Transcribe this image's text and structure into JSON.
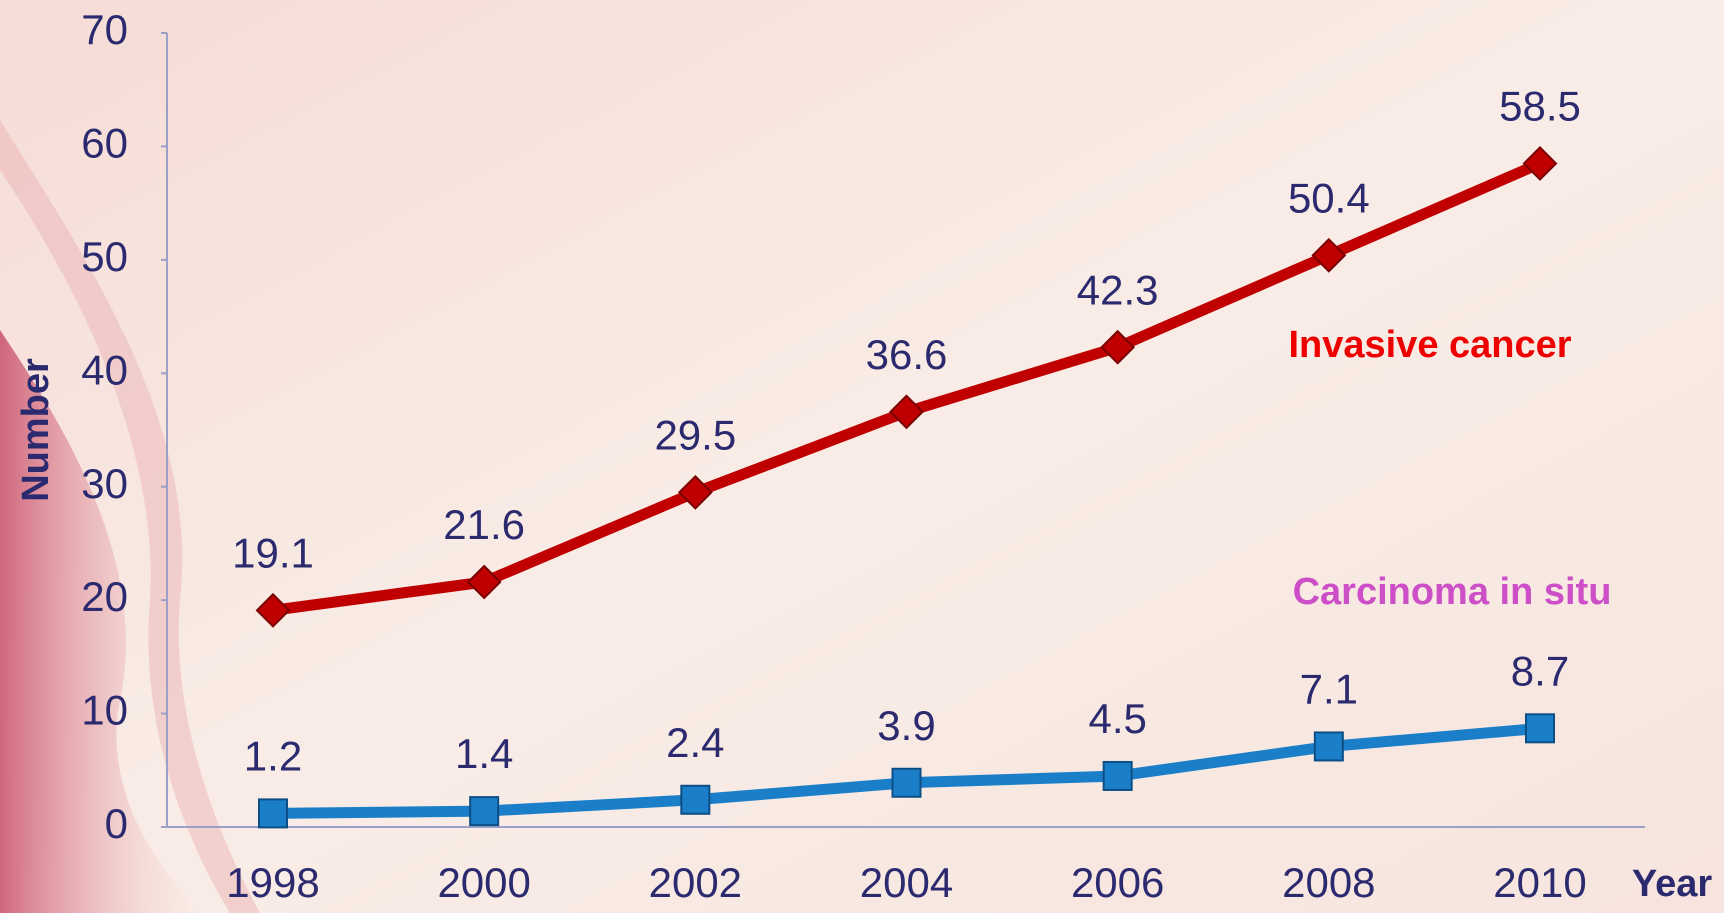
{
  "chart_data": {
    "type": "line",
    "categories": [
      "1998",
      "2000",
      "2002",
      "2004",
      "2006",
      "2008",
      "2010"
    ],
    "series": [
      {
        "name": "Invasive cancer",
        "color": "#c00000",
        "label_color": "#ee0000",
        "marker": "diamond",
        "values": [
          19.1,
          21.6,
          29.5,
          36.6,
          42.3,
          50.4,
          58.5
        ]
      },
      {
        "name": "Carcinoma in situ",
        "color": "#1a7fc8",
        "label_color": "#cc4fc8",
        "marker": "square",
        "values": [
          1.2,
          1.4,
          2.4,
          3.9,
          4.5,
          7.1,
          8.7
        ]
      }
    ],
    "ylabel": "Number",
    "xlabel": "Year",
    "ylim": [
      0,
      70
    ],
    "yticks": [
      0,
      10,
      20,
      30,
      40,
      50,
      60,
      70
    ]
  }
}
